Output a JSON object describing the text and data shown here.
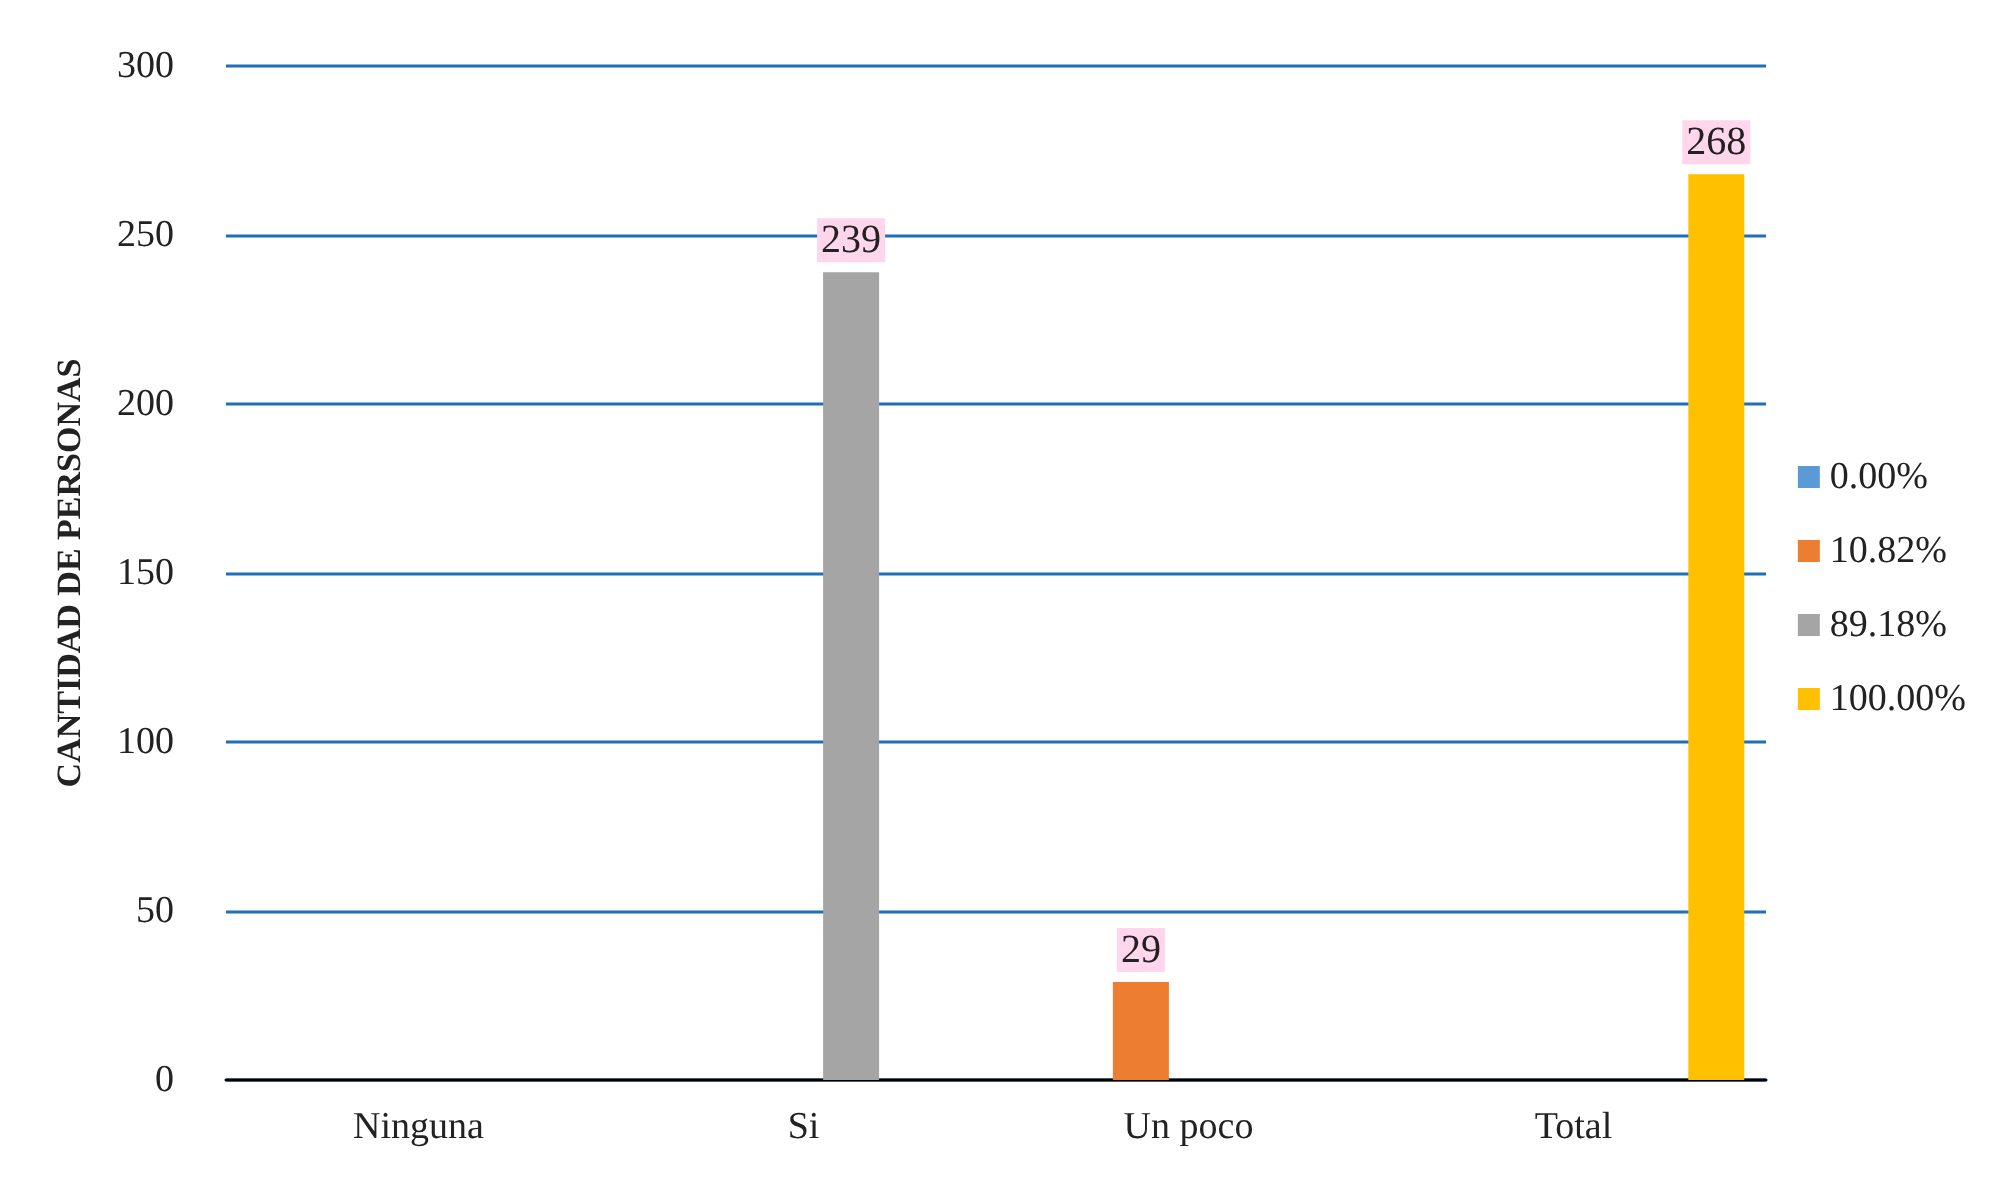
{
  "chart_data": {
    "type": "bar",
    "ylabel": "CANTIDAD DE PERSONAS",
    "categories": [
      "Ninguna",
      "Si",
      "Un poco",
      "Total"
    ],
    "series": [
      {
        "name": "0.00%",
        "color": "#5b9bd5",
        "values": [
          0,
          null,
          null,
          null
        ],
        "value_labels": [
          null,
          null,
          null,
          null
        ]
      },
      {
        "name": "10.82%",
        "color": "#ed7d31",
        "values": [
          null,
          null,
          29,
          null
        ],
        "value_labels": [
          null,
          null,
          "29",
          null
        ]
      },
      {
        "name": "89.18%",
        "color": "#a5a5a5",
        "values": [
          null,
          239,
          null,
          null
        ],
        "value_labels": [
          null,
          "239",
          null,
          null
        ]
      },
      {
        "name": "100.00%",
        "color": "#ffc000",
        "values": [
          null,
          null,
          null,
          268
        ],
        "value_labels": [
          null,
          null,
          null,
          "268"
        ]
      }
    ],
    "ylim": [
      0,
      300
    ],
    "yticks": [
      0,
      50,
      100,
      150,
      200,
      250,
      300
    ],
    "grid": "y",
    "legend": "right"
  }
}
